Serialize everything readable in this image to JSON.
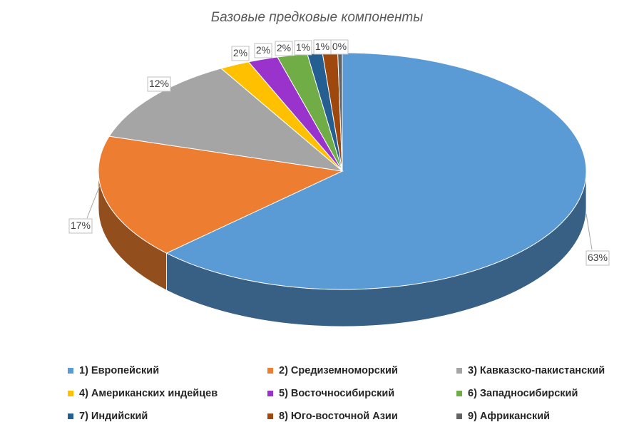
{
  "chart_data": {
    "type": "pie",
    "title": "Базовые предковые компоненты",
    "categories": [
      "1) Европейский",
      "2) Средиземноморский",
      "3) Кавказско-пакистанский",
      "4) Американских индейцев",
      "5) Восточносибирский",
      "6) Западносибирский",
      "7) Индийский",
      "8) Юго-восточной Азии",
      "9) Африканский"
    ],
    "values": [
      63,
      17,
      12,
      2,
      2,
      2,
      1,
      1,
      0.3
    ],
    "data_labels": [
      "63%",
      "17%",
      "12%",
      "2%",
      "2%",
      "2%",
      "1%",
      "1%",
      "0%"
    ],
    "colors": [
      "#5b9bd5",
      "#ed7d31",
      "#a5a5a5",
      "#ffc000",
      "#9933cc",
      "#70ad47",
      "#255e91",
      "#9e480e",
      "#636363"
    ],
    "legend": "bottom",
    "style": "3d"
  }
}
